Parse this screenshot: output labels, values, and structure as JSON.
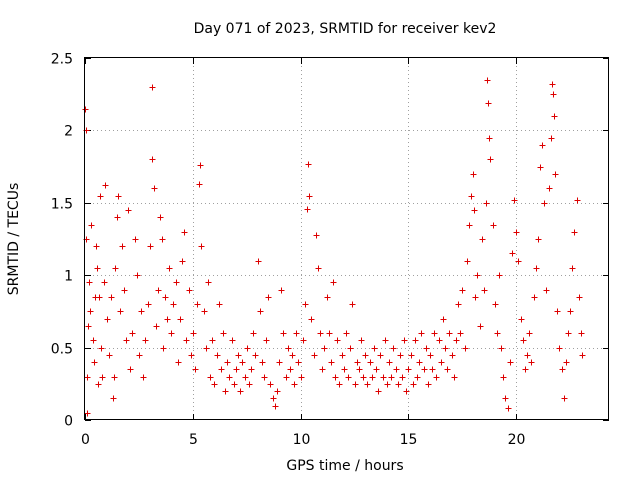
{
  "chart_data": {
    "type": "scatter",
    "title": "Day 071 of 2023, SRMTID for receiver kev2",
    "xlabel": "GPS time / hours",
    "ylabel": "SRMTID / TECUs",
    "xlim": [
      0,
      24.3
    ],
    "ylim": [
      0,
      2.5
    ],
    "xticks": [
      0,
      5,
      10,
      15,
      20
    ],
    "yticks": [
      0,
      0.5,
      1,
      1.5,
      2,
      2.5
    ],
    "xtick_labels": [
      "0",
      "5",
      "10",
      "15",
      "20"
    ],
    "ytick_labels": [
      "0",
      "0.5",
      "1",
      "1.5",
      "2",
      "2.5"
    ],
    "grid": true,
    "marker": "plus",
    "color": "#dd0000",
    "series": [
      {
        "name": "SRMTID",
        "points": [
          [
            0.02,
            2.15
          ],
          [
            0.05,
            2.0
          ],
          [
            0.05,
            1.25
          ],
          [
            0.1,
            0.3
          ],
          [
            0.1,
            0.05
          ],
          [
            0.15,
            0.65
          ],
          [
            0.2,
            0.95
          ],
          [
            0.25,
            0.75
          ],
          [
            0.3,
            1.35
          ],
          [
            0.35,
            0.55
          ],
          [
            0.4,
            0.4
          ],
          [
            0.45,
            0.85
          ],
          [
            0.5,
            1.2
          ],
          [
            0.55,
            1.05
          ],
          [
            0.6,
            0.25
          ],
          [
            0.65,
            0.85
          ],
          [
            0.7,
            1.55
          ],
          [
            0.75,
            0.5
          ],
          [
            0.8,
            0.3
          ],
          [
            0.9,
            0.95
          ],
          [
            0.95,
            1.62
          ],
          [
            1.0,
            0.7
          ],
          [
            1.1,
            0.45
          ],
          [
            1.2,
            0.85
          ],
          [
            1.3,
            0.15
          ],
          [
            1.35,
            0.3
          ],
          [
            1.4,
            1.05
          ],
          [
            1.5,
            1.4
          ],
          [
            1.55,
            1.55
          ],
          [
            1.6,
            0.75
          ],
          [
            1.7,
            1.2
          ],
          [
            1.8,
            0.9
          ],
          [
            1.9,
            0.55
          ],
          [
            2.0,
            1.45
          ],
          [
            2.1,
            0.35
          ],
          [
            2.2,
            0.6
          ],
          [
            2.3,
            1.25
          ],
          [
            2.4,
            1.0
          ],
          [
            2.5,
            0.45
          ],
          [
            2.6,
            0.75
          ],
          [
            2.7,
            0.3
          ],
          [
            2.8,
            0.55
          ],
          [
            2.9,
            0.8
          ],
          [
            3.0,
            1.2
          ],
          [
            3.1,
            1.8
          ],
          [
            3.12,
            2.3
          ],
          [
            3.2,
            1.6
          ],
          [
            3.3,
            0.65
          ],
          [
            3.4,
            0.9
          ],
          [
            3.5,
            1.4
          ],
          [
            3.55,
            1.25
          ],
          [
            3.6,
            0.5
          ],
          [
            3.7,
            0.85
          ],
          [
            3.8,
            0.7
          ],
          [
            3.9,
            1.05
          ],
          [
            4.0,
            0.6
          ],
          [
            4.1,
            0.8
          ],
          [
            4.2,
            0.95
          ],
          [
            4.3,
            0.4
          ],
          [
            4.4,
            0.7
          ],
          [
            4.5,
            1.1
          ],
          [
            4.6,
            1.3
          ],
          [
            4.7,
            0.55
          ],
          [
            4.8,
            0.9
          ],
          [
            4.9,
            0.45
          ],
          [
            5.0,
            0.6
          ],
          [
            5.1,
            0.35
          ],
          [
            5.2,
            0.8
          ],
          [
            5.3,
            1.63
          ],
          [
            5.35,
            1.76
          ],
          [
            5.4,
            1.2
          ],
          [
            5.5,
            0.75
          ],
          [
            5.6,
            0.5
          ],
          [
            5.7,
            0.95
          ],
          [
            5.8,
            0.3
          ],
          [
            5.9,
            0.55
          ],
          [
            6.0,
            0.25
          ],
          [
            6.1,
            0.45
          ],
          [
            6.2,
            0.8
          ],
          [
            6.3,
            0.35
          ],
          [
            6.4,
            0.6
          ],
          [
            6.5,
            0.2
          ],
          [
            6.6,
            0.4
          ],
          [
            6.7,
            0.3
          ],
          [
            6.8,
            0.55
          ],
          [
            6.9,
            0.25
          ],
          [
            7.0,
            0.35
          ],
          [
            7.1,
            0.45
          ],
          [
            7.2,
            0.2
          ],
          [
            7.3,
            0.4
          ],
          [
            7.4,
            0.3
          ],
          [
            7.5,
            0.5
          ],
          [
            7.6,
            0.25
          ],
          [
            7.7,
            0.35
          ],
          [
            7.8,
            0.6
          ],
          [
            7.9,
            0.45
          ],
          [
            8.0,
            1.1
          ],
          [
            8.1,
            0.75
          ],
          [
            8.2,
            0.4
          ],
          [
            8.3,
            0.3
          ],
          [
            8.4,
            0.55
          ],
          [
            8.5,
            0.85
          ],
          [
            8.6,
            0.25
          ],
          [
            8.7,
            0.15
          ],
          [
            8.8,
            0.1
          ],
          [
            8.9,
            0.2
          ],
          [
            9.0,
            0.4
          ],
          [
            9.1,
            0.9
          ],
          [
            9.2,
            0.6
          ],
          [
            9.3,
            0.3
          ],
          [
            9.4,
            0.5
          ],
          [
            9.5,
            0.35
          ],
          [
            9.6,
            0.45
          ],
          [
            9.7,
            0.25
          ],
          [
            9.8,
            0.6
          ],
          [
            9.9,
            0.4
          ],
          [
            10.0,
            0.3
          ],
          [
            10.1,
            0.55
          ],
          [
            10.2,
            0.8
          ],
          [
            10.3,
            1.46
          ],
          [
            10.35,
            1.77
          ],
          [
            10.4,
            1.55
          ],
          [
            10.5,
            0.7
          ],
          [
            10.6,
            0.45
          ],
          [
            10.7,
            1.28
          ],
          [
            10.8,
            1.05
          ],
          [
            10.9,
            0.6
          ],
          [
            11.0,
            0.35
          ],
          [
            11.1,
            0.5
          ],
          [
            11.2,
            0.85
          ],
          [
            11.3,
            0.6
          ],
          [
            11.4,
            0.4
          ],
          [
            11.5,
            0.95
          ],
          [
            11.6,
            0.3
          ],
          [
            11.7,
            0.55
          ],
          [
            11.8,
            0.25
          ],
          [
            11.9,
            0.45
          ],
          [
            12.0,
            0.35
          ],
          [
            12.1,
            0.6
          ],
          [
            12.2,
            0.3
          ],
          [
            12.3,
            0.5
          ],
          [
            12.4,
            0.8
          ],
          [
            12.5,
            0.25
          ],
          [
            12.6,
            0.4
          ],
          [
            12.7,
            0.35
          ],
          [
            12.8,
            0.55
          ],
          [
            12.9,
            0.3
          ],
          [
            13.0,
            0.45
          ],
          [
            13.1,
            0.25
          ],
          [
            13.2,
            0.4
          ],
          [
            13.3,
            0.3
          ],
          [
            13.4,
            0.5
          ],
          [
            13.5,
            0.35
          ],
          [
            13.6,
            0.2
          ],
          [
            13.7,
            0.45
          ],
          [
            13.8,
            0.3
          ],
          [
            13.9,
            0.55
          ],
          [
            14.0,
            0.25
          ],
          [
            14.1,
            0.4
          ],
          [
            14.2,
            0.3
          ],
          [
            14.3,
            0.5
          ],
          [
            14.4,
            0.35
          ],
          [
            14.5,
            0.25
          ],
          [
            14.6,
            0.45
          ],
          [
            14.7,
            0.3
          ],
          [
            14.8,
            0.55
          ],
          [
            14.9,
            0.2
          ],
          [
            15.0,
            0.35
          ],
          [
            15.1,
            0.45
          ],
          [
            15.2,
            0.25
          ],
          [
            15.3,
            0.55
          ],
          [
            15.4,
            0.3
          ],
          [
            15.5,
            0.4
          ],
          [
            15.6,
            0.6
          ],
          [
            15.7,
            0.35
          ],
          [
            15.8,
            0.5
          ],
          [
            15.9,
            0.25
          ],
          [
            16.0,
            0.45
          ],
          [
            16.1,
            0.35
          ],
          [
            16.2,
            0.6
          ],
          [
            16.3,
            0.3
          ],
          [
            16.4,
            0.55
          ],
          [
            16.5,
            0.4
          ],
          [
            16.6,
            0.7
          ],
          [
            16.7,
            0.5
          ],
          [
            16.8,
            0.35
          ],
          [
            16.9,
            0.6
          ],
          [
            17.0,
            0.45
          ],
          [
            17.1,
            0.3
          ],
          [
            17.2,
            0.55
          ],
          [
            17.3,
            0.8
          ],
          [
            17.4,
            0.6
          ],
          [
            17.5,
            0.9
          ],
          [
            17.6,
            0.5
          ],
          [
            17.7,
            1.1
          ],
          [
            17.8,
            1.35
          ],
          [
            17.9,
            1.55
          ],
          [
            18.0,
            1.7
          ],
          [
            18.05,
            1.45
          ],
          [
            18.1,
            0.85
          ],
          [
            18.2,
            1.0
          ],
          [
            18.3,
            0.65
          ],
          [
            18.4,
            1.25
          ],
          [
            18.5,
            0.9
          ],
          [
            18.6,
            1.5
          ],
          [
            18.65,
            2.35
          ],
          [
            18.7,
            2.19
          ],
          [
            18.75,
            1.95
          ],
          [
            18.8,
            1.8
          ],
          [
            18.9,
            1.35
          ],
          [
            19.0,
            0.8
          ],
          [
            19.1,
            0.6
          ],
          [
            19.2,
            1.0
          ],
          [
            19.3,
            0.5
          ],
          [
            19.4,
            0.3
          ],
          [
            19.5,
            0.15
          ],
          [
            19.6,
            0.08
          ],
          [
            19.7,
            0.4
          ],
          [
            19.8,
            1.15
          ],
          [
            19.9,
            1.52
          ],
          [
            20.0,
            1.3
          ],
          [
            20.1,
            1.1
          ],
          [
            20.2,
            0.7
          ],
          [
            20.3,
            0.55
          ],
          [
            20.4,
            0.35
          ],
          [
            20.5,
            0.45
          ],
          [
            20.6,
            0.6
          ],
          [
            20.7,
            0.4
          ],
          [
            20.8,
            0.85
          ],
          [
            20.9,
            1.05
          ],
          [
            21.0,
            1.25
          ],
          [
            21.1,
            1.75
          ],
          [
            21.2,
            1.9
          ],
          [
            21.3,
            1.5
          ],
          [
            21.4,
            0.9
          ],
          [
            21.5,
            1.6
          ],
          [
            21.6,
            1.95
          ],
          [
            21.65,
            2.32
          ],
          [
            21.7,
            2.25
          ],
          [
            21.75,
            2.1
          ],
          [
            21.8,
            1.7
          ],
          [
            21.9,
            0.75
          ],
          [
            22.0,
            0.5
          ],
          [
            22.1,
            0.35
          ],
          [
            22.2,
            0.15
          ],
          [
            22.3,
            0.4
          ],
          [
            22.4,
            0.6
          ],
          [
            22.5,
            0.75
          ],
          [
            22.6,
            1.05
          ],
          [
            22.7,
            1.3
          ],
          [
            22.8,
            1.52
          ],
          [
            22.9,
            0.85
          ],
          [
            23.0,
            0.6
          ],
          [
            23.05,
            0.45
          ]
        ]
      }
    ]
  }
}
